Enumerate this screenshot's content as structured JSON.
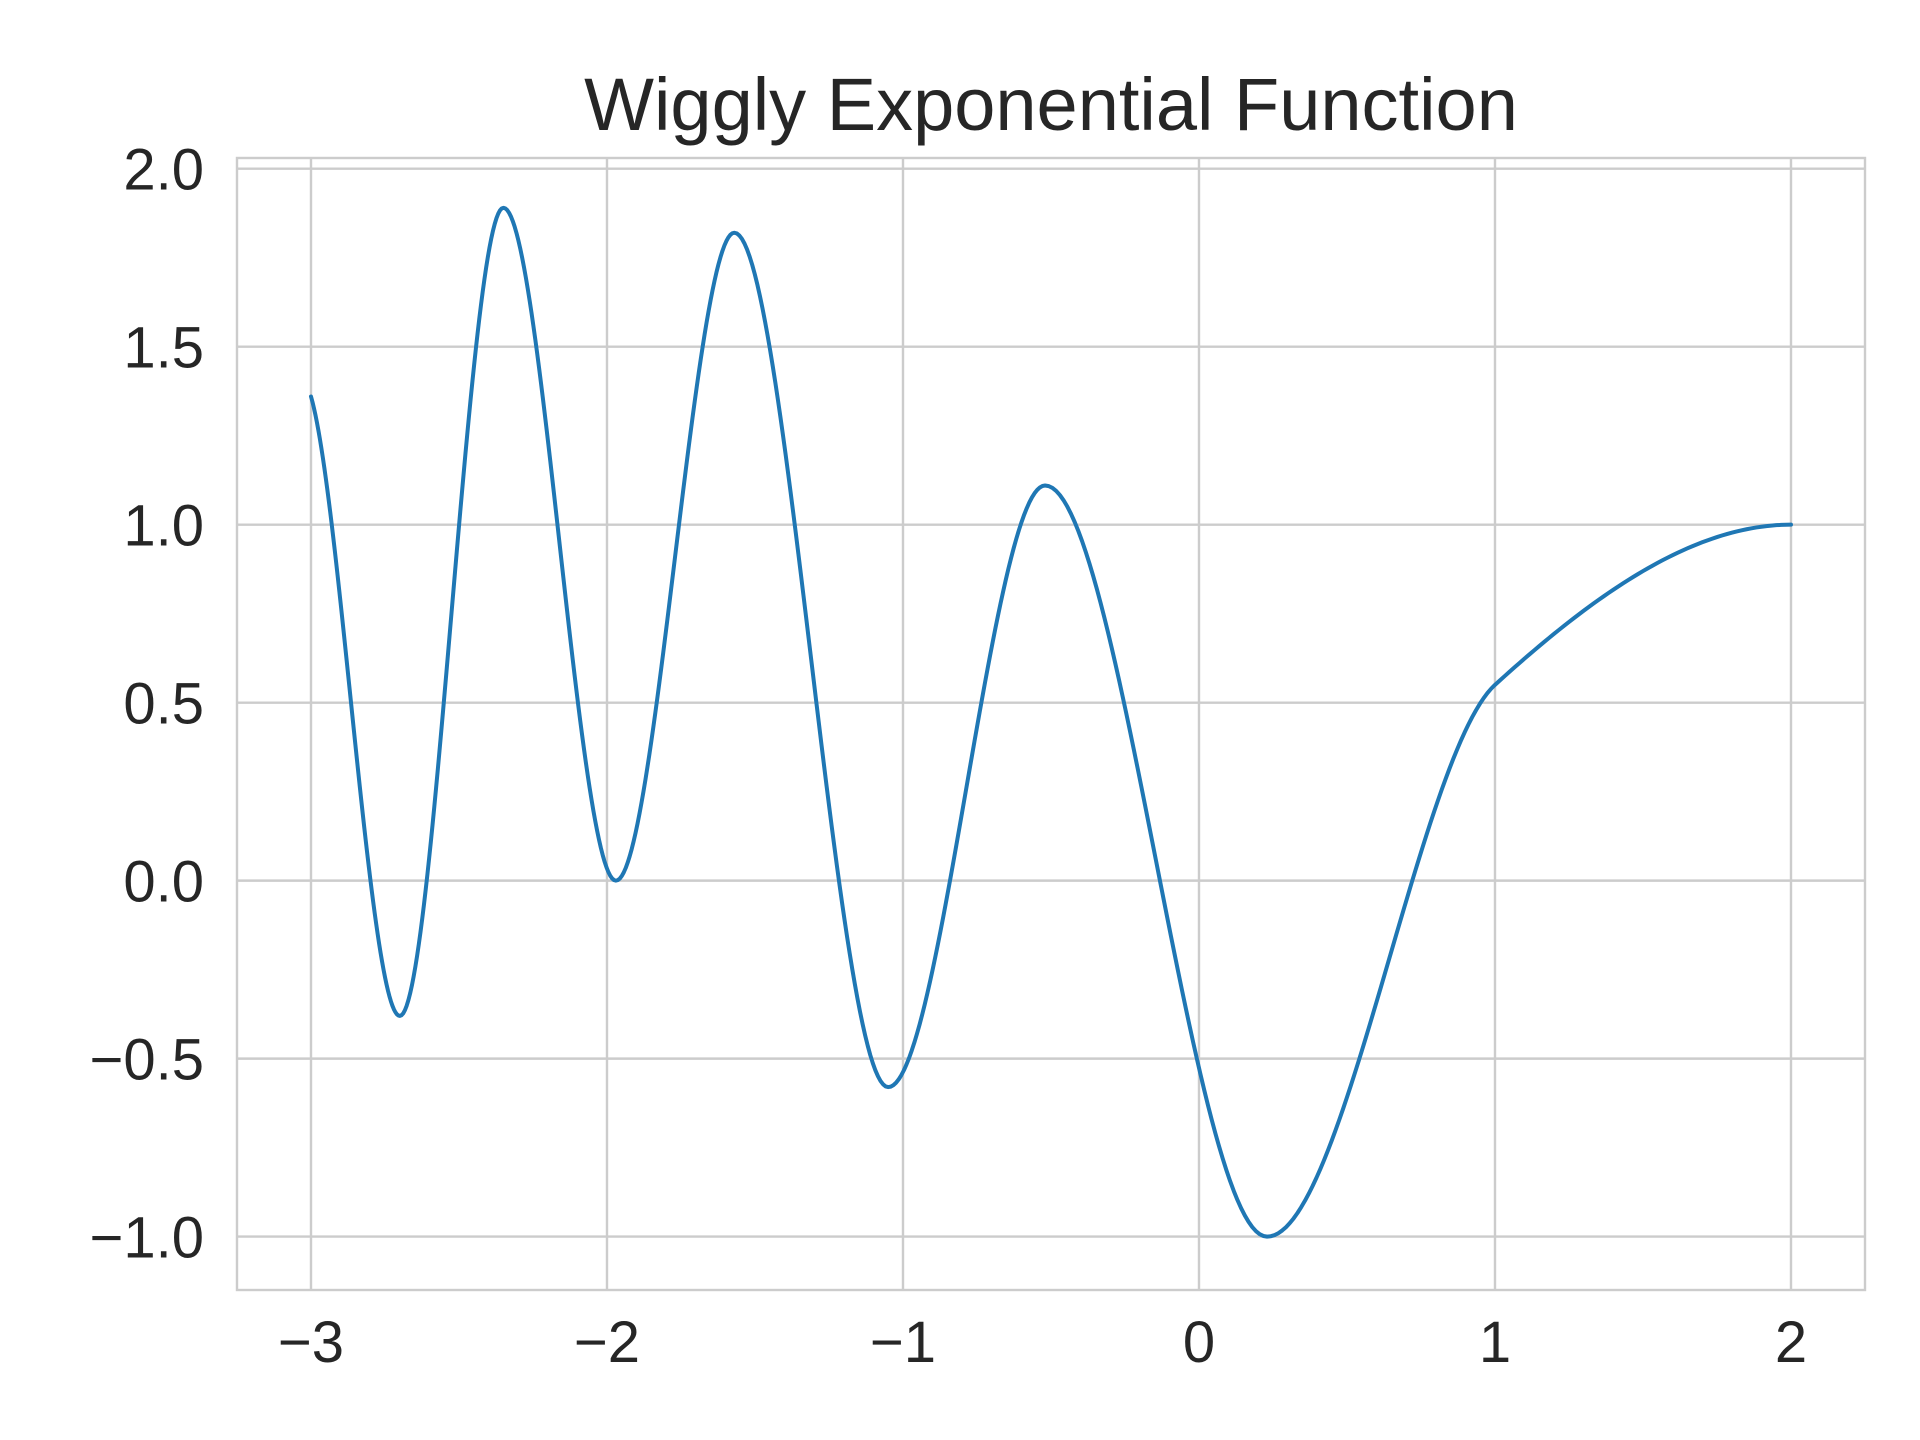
{
  "chart_data": {
    "type": "line",
    "title": "Wiggly Exponential Function",
    "xlabel": "",
    "ylabel": "",
    "xlim": [
      -3.25,
      2.25
    ],
    "ylim": [
      -1.15,
      2.03
    ],
    "x_ticks": [
      -3,
      -2,
      -1,
      0,
      1,
      2
    ],
    "x_tick_labels": [
      "−3",
      "−2",
      "−1",
      "0",
      "1",
      "2"
    ],
    "y_ticks": [
      -1.0,
      -0.5,
      0.0,
      0.5,
      1.0,
      1.5,
      2.0
    ],
    "y_tick_labels": [
      "−1.0",
      "−0.5",
      "0.0",
      "0.5",
      "1.0",
      "1.5",
      "2.0"
    ],
    "grid": true,
    "legend": "none",
    "series_color": "#1f77b4",
    "series": [
      {
        "x": [
          -3.0,
          -2.7,
          -2.35,
          -1.97,
          -1.57,
          -1.05,
          -0.52,
          0.23,
          1.0,
          2.0
        ],
        "y": [
          1.36,
          -0.38,
          1.89,
          0.0,
          1.82,
          -0.58,
          1.11,
          -1.0,
          0.55,
          1.0
        ]
      }
    ]
  }
}
